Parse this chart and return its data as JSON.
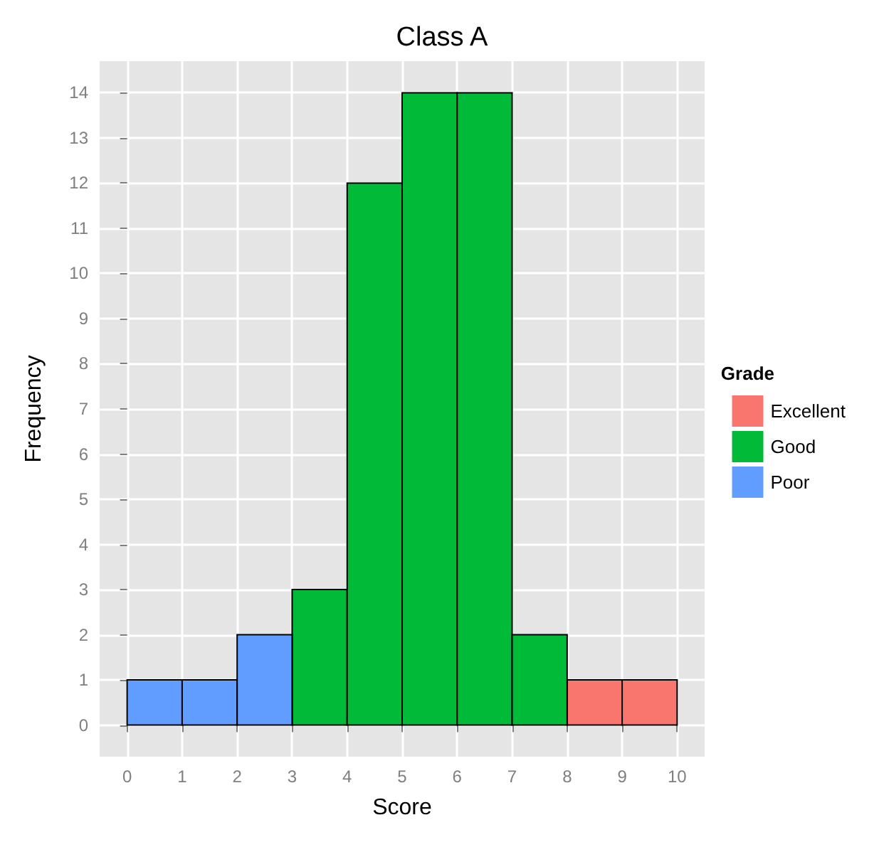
{
  "chart_data": {
    "type": "histogram",
    "title": "Class A",
    "xlabel": "Score",
    "ylabel": "Frequency",
    "legend_title": "Grade",
    "bins": [
      0,
      1,
      2,
      3,
      4,
      5,
      6,
      7,
      8,
      9,
      10
    ],
    "series": [
      {
        "name": "Excellent",
        "color": "#f8766d",
        "values": [
          null,
          null,
          null,
          null,
          null,
          null,
          null,
          null,
          1,
          1
        ]
      },
      {
        "name": "Good",
        "color": "#00ba38",
        "values": [
          null,
          null,
          null,
          3,
          12,
          14,
          14,
          2,
          null,
          null
        ]
      },
      {
        "name": "Poor",
        "color": "#619cff",
        "values": [
          1,
          1,
          2,
          null,
          null,
          null,
          null,
          null,
          null,
          null
        ]
      }
    ],
    "xlim": [
      -0.5,
      10.5
    ],
    "xticks": [
      0,
      1,
      2,
      3,
      4,
      5,
      6,
      7,
      8,
      9,
      10
    ],
    "ylim": [
      -0.7,
      14.7
    ],
    "yticks": [
      0,
      1,
      2,
      3,
      4,
      5,
      6,
      7,
      8,
      9,
      10,
      11,
      12,
      13,
      14
    ],
    "grid": true,
    "legend": "right"
  }
}
